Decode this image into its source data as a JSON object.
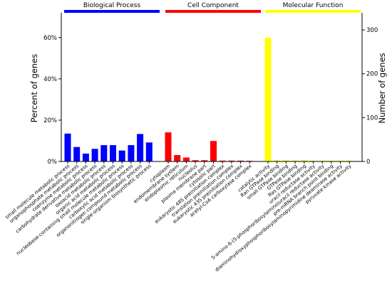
{
  "chart_data": {
    "type": "bar",
    "ylabel_left": "Percent of genes",
    "ylabel_right": "Number of genes",
    "left_ylim": [
      0,
      72
    ],
    "right_ylim": [
      0,
      339
    ],
    "left_ticks": [
      0,
      20,
      40,
      60
    ],
    "left_tick_labels": [
      "0%",
      "20%",
      "40%",
      "60%"
    ],
    "right_ticks": [
      0,
      100,
      200,
      300
    ],
    "right_tick_labels": [
      "0",
      "100",
      "200",
      "300"
    ],
    "grid": false,
    "groups": [
      {
        "name": "Biological Process",
        "color": "#0000ff",
        "categories": [
          "small molecule metabolic process",
          "organophosphate metabolic process",
          "coenzyme metabolic process",
          "carbohydrate derivative metabolic process",
          "oxoacid metabolic process",
          "organic acid metabolic process",
          "nucleobase-containing small molecule metabolic process",
          "carboxylic acid metabolic process",
          "organonitrogen compound metabolic process",
          "single-organism biosynthetic process"
        ],
        "values": [
          13.5,
          7,
          3.8,
          6.1,
          7.9,
          7.9,
          5.3,
          7.9,
          13.3,
          9.2
        ]
      },
      {
        "name": "Cell Component",
        "color": "#ff0000",
        "categories": [
          "cytoplasm",
          "endomembrane system",
          "endoplasmic reticulum",
          "nucleolus",
          "plasma membrane part",
          "cytosolic part",
          "eukaryotic 48S preinitiation complex",
          "translation preinitiation complex",
          "eukaryotic 43S preinitiation complex",
          "acetyl-CoA carboxylase complex"
        ],
        "values": [
          14.1,
          3.1,
          1.9,
          0.6,
          0.6,
          9.9,
          0.4,
          0.4,
          0.4,
          0.3
        ]
      },
      {
        "name": "Molecular Function",
        "color": "#ffff00",
        "categories": [
          "catalytic activity",
          "Ran GTPase binding",
          "small GTPase binding",
          "GTPase binding",
          "Ras GTPase binding",
          "uracil reductase activity",
          "5-amino-6-(5-phosphoribosylamino)uracil reductase activity",
          "pre-mRNA branch point binding",
          "diaminohydroxyphosphoribosylaminopyrimidine deaminase activity",
          "pyruvate kinase activity"
        ],
        "values": [
          59.9,
          0.6,
          0.6,
          0.6,
          0.6,
          0.4,
          0.4,
          0.4,
          0.4,
          0.4
        ]
      }
    ]
  }
}
